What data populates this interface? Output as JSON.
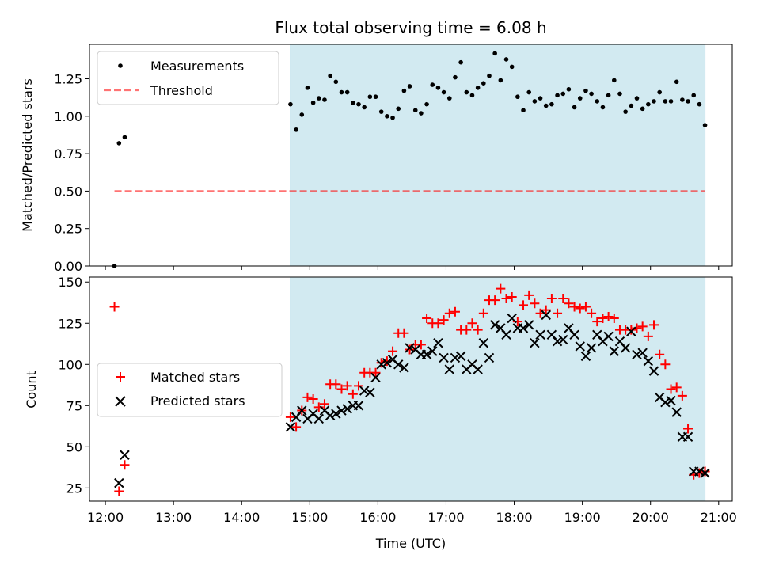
{
  "chart_data": {
    "title": "Flux total observing time = 6.08 h",
    "xlabel": "Time (UTC)",
    "x_ticks": [
      "12:00",
      "13:00",
      "14:00",
      "15:00",
      "16:00",
      "17:00",
      "18:00",
      "19:00",
      "20:00",
      "21:00"
    ],
    "xlim": [
      "11:46",
      "21:12"
    ],
    "colors": {
      "band": "#add8e6",
      "matched": "#ff0000",
      "predicted": "#000000",
      "threshold": "#ff0000",
      "measurements": "#000000"
    },
    "shaded_span": [
      "14:43",
      "20:48"
    ],
    "panels": [
      {
        "type": "scatter",
        "ylabel": "Matched/Predicted stars",
        "ylim": [
          0,
          1.48
        ],
        "y_ticks": [
          "0.00",
          "0.25",
          "0.50",
          "0.75",
          "1.00",
          "1.25"
        ],
        "legend_position": "upper-left",
        "threshold": {
          "name": "Threshold",
          "y": 0.5,
          "x_range": [
            "12:08",
            "20:48"
          ]
        },
        "series": [
          {
            "name": "Measurements",
            "points": [
              [
                "12:08",
                0.0
              ],
              [
                "12:12",
                0.82
              ],
              [
                "12:17",
                0.86
              ],
              [
                "14:43",
                1.08
              ],
              [
                "14:48",
                0.91
              ],
              [
                "14:53",
                1.01
              ],
              [
                "14:58",
                1.19
              ],
              [
                "15:03",
                1.09
              ],
              [
                "15:08",
                1.12
              ],
              [
                "15:13",
                1.11
              ],
              [
                "15:18",
                1.27
              ],
              [
                "15:23",
                1.23
              ],
              [
                "15:28",
                1.16
              ],
              [
                "15:33",
                1.16
              ],
              [
                "15:38",
                1.09
              ],
              [
                "15:43",
                1.08
              ],
              [
                "15:48",
                1.06
              ],
              [
                "15:53",
                1.13
              ],
              [
                "15:58",
                1.13
              ],
              [
                "16:03",
                1.03
              ],
              [
                "16:08",
                1.0
              ],
              [
                "16:13",
                0.99
              ],
              [
                "16:18",
                1.05
              ],
              [
                "16:23",
                1.17
              ],
              [
                "16:28",
                1.2
              ],
              [
                "16:33",
                1.04
              ],
              [
                "16:38",
                1.02
              ],
              [
                "16:43",
                1.08
              ],
              [
                "16:48",
                1.21
              ],
              [
                "16:53",
                1.19
              ],
              [
                "16:58",
                1.16
              ],
              [
                "17:03",
                1.12
              ],
              [
                "17:08",
                1.26
              ],
              [
                "17:13",
                1.36
              ],
              [
                "17:18",
                1.16
              ],
              [
                "17:23",
                1.14
              ],
              [
                "17:28",
                1.19
              ],
              [
                "17:33",
                1.22
              ],
              [
                "17:38",
                1.27
              ],
              [
                "17:43",
                1.42
              ],
              [
                "17:48",
                1.24
              ],
              [
                "17:53",
                1.38
              ],
              [
                "17:58",
                1.33
              ],
              [
                "18:03",
                1.13
              ],
              [
                "18:08",
                1.04
              ],
              [
                "18:13",
                1.16
              ],
              [
                "18:18",
                1.1
              ],
              [
                "18:23",
                1.12
              ],
              [
                "18:28",
                1.07
              ],
              [
                "18:33",
                1.08
              ],
              [
                "18:38",
                1.14
              ],
              [
                "18:43",
                1.15
              ],
              [
                "18:48",
                1.18
              ],
              [
                "18:53",
                1.06
              ],
              [
                "18:58",
                1.12
              ],
              [
                "19:03",
                1.17
              ],
              [
                "19:08",
                1.15
              ],
              [
                "19:13",
                1.1
              ],
              [
                "19:18",
                1.06
              ],
              [
                "19:23",
                1.14
              ],
              [
                "19:28",
                1.24
              ],
              [
                "19:33",
                1.15
              ],
              [
                "19:38",
                1.03
              ],
              [
                "19:43",
                1.07
              ],
              [
                "19:48",
                1.12
              ],
              [
                "19:53",
                1.05
              ],
              [
                "19:58",
                1.08
              ],
              [
                "20:03",
                1.1
              ],
              [
                "20:08",
                1.16
              ],
              [
                "20:13",
                1.1
              ],
              [
                "20:18",
                1.1
              ],
              [
                "20:23",
                1.23
              ],
              [
                "20:28",
                1.11
              ],
              [
                "20:33",
                1.1
              ],
              [
                "20:38",
                1.14
              ],
              [
                "20:43",
                1.08
              ],
              [
                "20:48",
                0.94
              ]
            ]
          }
        ]
      },
      {
        "type": "scatter",
        "ylabel": "Count",
        "ylim": [
          17,
          153
        ],
        "y_ticks": [
          "25",
          "50",
          "75",
          "100",
          "125",
          "150"
        ],
        "legend_position": "center-left",
        "series": [
          {
            "name": "Matched stars",
            "marker": "+",
            "points": [
              [
                "12:08",
                135
              ],
              [
                "12:12",
                23
              ],
              [
                "12:17",
                39
              ],
              [
                "14:43",
                68
              ],
              [
                "14:48",
                62
              ],
              [
                "14:53",
                72
              ],
              [
                "14:58",
                80
              ],
              [
                "15:03",
                79
              ],
              [
                "15:08",
                74
              ],
              [
                "15:13",
                76
              ],
              [
                "15:18",
                88
              ],
              [
                "15:23",
                88
              ],
              [
                "15:28",
                85
              ],
              [
                "15:33",
                87
              ],
              [
                "15:38",
                82
              ],
              [
                "15:43",
                87
              ],
              [
                "15:48",
                95
              ],
              [
                "15:53",
                95
              ],
              [
                "15:58",
                95
              ],
              [
                "16:03",
                101
              ],
              [
                "16:08",
                102
              ],
              [
                "16:13",
                108
              ],
              [
                "16:18",
                119
              ],
              [
                "16:23",
                119
              ],
              [
                "16:28",
                109
              ],
              [
                "16:33",
                112
              ],
              [
                "16:38",
                112
              ],
              [
                "16:43",
                128
              ],
              [
                "16:48",
                125
              ],
              [
                "16:53",
                125
              ],
              [
                "16:58",
                127
              ],
              [
                "17:03",
                131
              ],
              [
                "17:08",
                132
              ],
              [
                "17:13",
                121
              ],
              [
                "17:18",
                121
              ],
              [
                "17:23",
                125
              ],
              [
                "17:28",
                121
              ],
              [
                "17:33",
                131
              ],
              [
                "17:38",
                139
              ],
              [
                "17:43",
                139
              ],
              [
                "17:48",
                146
              ],
              [
                "17:53",
                140
              ],
              [
                "17:58",
                141
              ],
              [
                "18:03",
                126
              ],
              [
                "18:08",
                136
              ],
              [
                "18:13",
                142
              ],
              [
                "18:18",
                137
              ],
              [
                "18:23",
                131
              ],
              [
                "18:28",
                133
              ],
              [
                "18:33",
                140
              ],
              [
                "18:38",
                131
              ],
              [
                "18:43",
                140
              ],
              [
                "18:48",
                137
              ],
              [
                "18:53",
                135
              ],
              [
                "18:58",
                134
              ],
              [
                "19:03",
                135
              ],
              [
                "19:08",
                131
              ],
              [
                "19:13",
                126
              ],
              [
                "19:18",
                128
              ],
              [
                "19:23",
                129
              ],
              [
                "19:28",
                128
              ],
              [
                "19:33",
                121
              ],
              [
                "19:38",
                121
              ],
              [
                "19:43",
                121
              ],
              [
                "19:48",
                122
              ],
              [
                "19:53",
                123
              ],
              [
                "19:58",
                117
              ],
              [
                "20:03",
                124
              ],
              [
                "20:08",
                106
              ],
              [
                "20:13",
                100
              ],
              [
                "20:18",
                85
              ],
              [
                "20:23",
                86
              ],
              [
                "20:28",
                81
              ],
              [
                "20:33",
                61
              ],
              [
                "20:38",
                33
              ],
              [
                "20:43",
                34
              ],
              [
                "20:48",
                35
              ]
            ]
          },
          {
            "name": "Predicted stars",
            "marker": "x",
            "points": [
              [
                "12:12",
                28
              ],
              [
                "12:17",
                45
              ],
              [
                "14:43",
                62
              ],
              [
                "14:48",
                68
              ],
              [
                "14:53",
                72
              ],
              [
                "14:58",
                67
              ],
              [
                "15:03",
                70
              ],
              [
                "15:08",
                67
              ],
              [
                "15:13",
                72
              ],
              [
                "15:18",
                69
              ],
              [
                "15:23",
                70
              ],
              [
                "15:28",
                72
              ],
              [
                "15:33",
                73
              ],
              [
                "15:38",
                75
              ],
              [
                "15:43",
                75
              ],
              [
                "15:48",
                84
              ],
              [
                "15:53",
                83
              ],
              [
                "15:58",
                92
              ],
              [
                "16:03",
                100
              ],
              [
                "16:08",
                101
              ],
              [
                "16:13",
                103
              ],
              [
                "16:18",
                100
              ],
              [
                "16:23",
                98
              ],
              [
                "16:28",
                110
              ],
              [
                "16:33",
                109
              ],
              [
                "16:38",
                106
              ],
              [
                "16:43",
                106
              ],
              [
                "16:48",
                108
              ],
              [
                "16:53",
                113
              ],
              [
                "16:58",
                104
              ],
              [
                "17:03",
                97
              ],
              [
                "17:08",
                104
              ],
              [
                "17:13",
                105
              ],
              [
                "17:18",
                97
              ],
              [
                "17:23",
                100
              ],
              [
                "17:28",
                97
              ],
              [
                "17:33",
                113
              ],
              [
                "17:38",
                104
              ],
              [
                "17:43",
                124
              ],
              [
                "17:48",
                122
              ],
              [
                "17:53",
                118
              ],
              [
                "17:58",
                128
              ],
              [
                "18:03",
                122
              ],
              [
                "18:08",
                122
              ],
              [
                "18:13",
                124
              ],
              [
                "18:18",
                113
              ],
              [
                "18:23",
                118
              ],
              [
                "18:28",
                130
              ],
              [
                "18:33",
                118
              ],
              [
                "18:38",
                114
              ],
              [
                "18:43",
                115
              ],
              [
                "18:48",
                122
              ],
              [
                "18:53",
                118
              ],
              [
                "18:58",
                111
              ],
              [
                "19:03",
                105
              ],
              [
                "19:08",
                110
              ],
              [
                "19:13",
                118
              ],
              [
                "19:18",
                114
              ],
              [
                "19:23",
                117
              ],
              [
                "19:28",
                108
              ],
              [
                "19:33",
                114
              ],
              [
                "19:38",
                110
              ],
              [
                "19:43",
                120
              ],
              [
                "19:48",
                106
              ],
              [
                "19:53",
                107
              ],
              [
                "19:58",
                102
              ],
              [
                "20:03",
                96
              ],
              [
                "20:08",
                80
              ],
              [
                "20:13",
                77
              ],
              [
                "20:18",
                78
              ],
              [
                "20:23",
                71
              ],
              [
                "20:28",
                56
              ],
              [
                "20:33",
                56
              ],
              [
                "20:38",
                35
              ],
              [
                "20:43",
                35
              ],
              [
                "20:48",
                34
              ]
            ]
          }
        ]
      }
    ]
  }
}
